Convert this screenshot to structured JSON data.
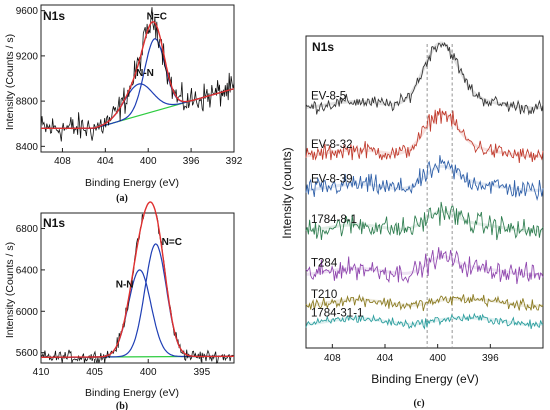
{
  "chart_data": [
    {
      "panel": "a",
      "type": "line",
      "caption": "(a)",
      "title": "N1s",
      "xlabel": "Binding Energy (eV)",
      "ylabel": "Intensity (Counts / s)",
      "xlim": [
        410,
        392
      ],
      "ylim": [
        8350,
        9650
      ],
      "xticks": [
        408,
        404,
        400,
        396,
        392
      ],
      "yticks": [
        8400,
        8800,
        9200,
        9600
      ],
      "annotations": [
        {
          "text": "N=C",
          "x": 399.2,
          "y": 9520
        },
        {
          "text": "N-N",
          "x": 400.3,
          "y": 9020
        }
      ],
      "background": {
        "x": [
          405,
          392
        ],
        "y": [
          8560,
          8910
        ]
      },
      "peaks": [
        {
          "name": "N-N",
          "center": 400.9,
          "sigma": 1.3,
          "height": 280
        },
        {
          "name": "N=C",
          "center": 399.4,
          "sigma": 0.95,
          "height": 640
        }
      ],
      "noise_amplitude": 70,
      "grid": false,
      "legend": "none"
    },
    {
      "panel": "b",
      "type": "line",
      "caption": "(b)",
      "title": "N1s",
      "xlabel": "Binding Energy (eV)",
      "ylabel": "Intensity (Counts / s)",
      "xlim": [
        410,
        392
      ],
      "ylim": [
        5500,
        6950
      ],
      "xticks": [
        410,
        405,
        400,
        395
      ],
      "yticks": [
        5600,
        6000,
        6400,
        6800
      ],
      "annotations": [
        {
          "text": "N-N",
          "x": 402.2,
          "y": 6230
        },
        {
          "text": "N=C",
          "x": 397.8,
          "y": 6640
        }
      ],
      "background": {
        "x": [
          410,
          392
        ],
        "y": [
          5555,
          5565
        ]
      },
      "peaks": [
        {
          "name": "N-N",
          "center": 400.8,
          "sigma": 1.05,
          "height": 840
        },
        {
          "name": "N=C",
          "center": 399.3,
          "sigma": 1.0,
          "height": 1090
        }
      ],
      "noise_amplitude": 35,
      "grid": false,
      "legend": "none"
    },
    {
      "panel": "c",
      "type": "line",
      "caption": "(c)",
      "title": "N1s",
      "xlabel": "Binding Energy (eV)",
      "ylabel": "Intensity (counts)",
      "xlim": [
        410,
        392
      ],
      "xticks": [
        408,
        404,
        400,
        396
      ],
      "yticks": [],
      "reference_lines": [
        400.8,
        398.9
      ],
      "grid": false,
      "legend": "none",
      "series": [
        {
          "name": "EV-8-5",
          "color": "#333333",
          "offset": 0.78,
          "peak": 0.2,
          "noise": 0.012,
          "pw": 1.3
        },
        {
          "name": "EV-8-32",
          "color": "#c0392b",
          "offset": 0.625,
          "peak": 0.13,
          "noise": 0.015,
          "pw": 1.25
        },
        {
          "name": "EV-8-39",
          "color": "#2e5fa8",
          "offset": 0.515,
          "peak": 0.07,
          "noise": 0.018,
          "pw": 1.2
        },
        {
          "name": "1784-8-1",
          "color": "#2e7d4f",
          "offset": 0.385,
          "peak": 0.055,
          "noise": 0.02,
          "pw": 1.2
        },
        {
          "name": "T284",
          "color": "#8e44ad",
          "offset": 0.245,
          "peak": 0.05,
          "noise": 0.018,
          "pw": 1.1
        },
        {
          "name": "T210",
          "color": "#8a7a20",
          "offset": 0.145,
          "peak": 0.01,
          "noise": 0.01,
          "pw": 1.2
        },
        {
          "name": "1784-31-1",
          "color": "#2a9d9d",
          "offset": 0.085,
          "peak": 0.008,
          "noise": 0.008,
          "pw": 1.2
        }
      ]
    }
  ]
}
